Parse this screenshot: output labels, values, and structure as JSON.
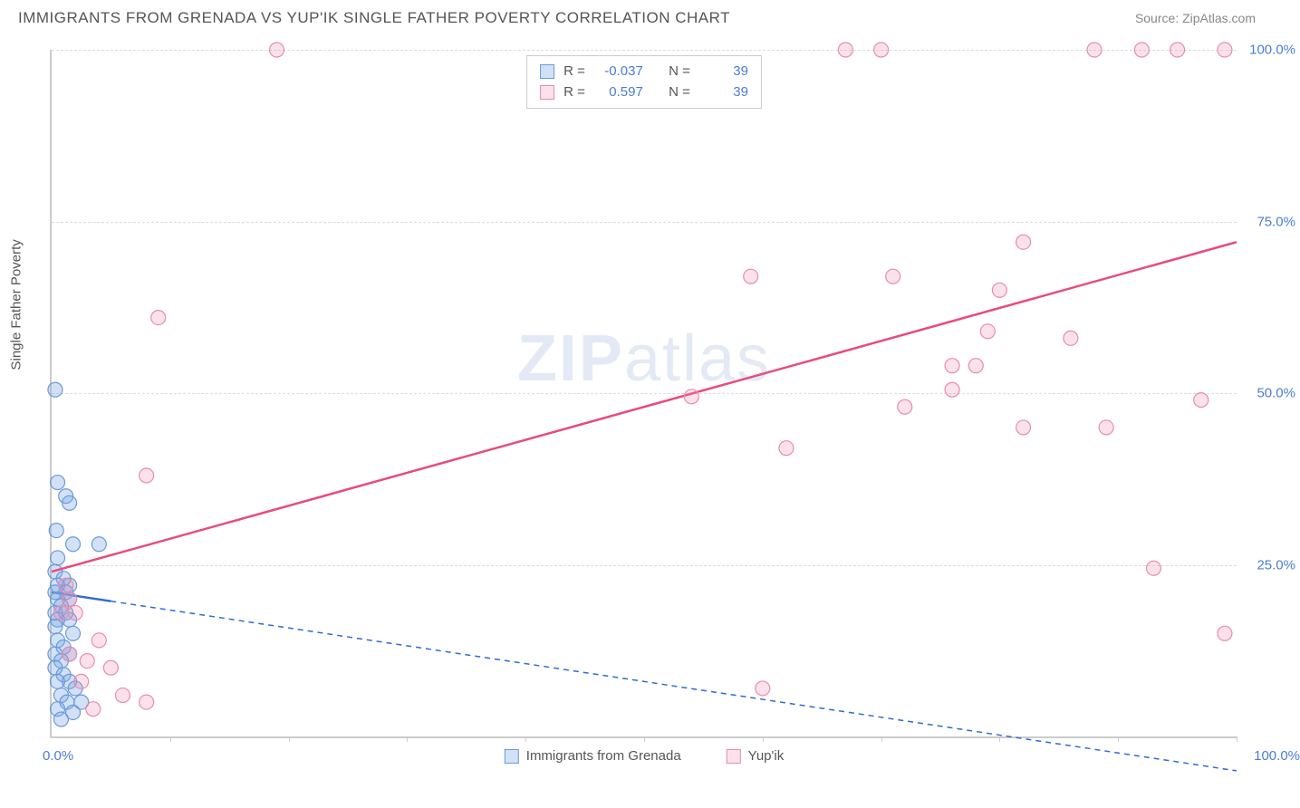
{
  "header": {
    "title": "IMMIGRANTS FROM GRENADA VS YUP'IK SINGLE FATHER POVERTY CORRELATION CHART",
    "source": "Source: ZipAtlas.com"
  },
  "chart": {
    "type": "scatter",
    "ylabel": "Single Father Poverty",
    "xlim": [
      0,
      100
    ],
    "ylim": [
      0,
      100
    ],
    "grid_color": "#dddddd",
    "axis_color": "#cccccc",
    "background_color": "#ffffff",
    "ytick_labels": [
      "25.0%",
      "50.0%",
      "75.0%",
      "100.0%"
    ],
    "ytick_values": [
      25,
      50,
      75,
      100
    ],
    "xtick_labels_shown": [
      "0.0%",
      "100.0%"
    ],
    "xtick_positions": [
      0,
      10,
      20,
      30,
      40,
      50,
      60,
      70,
      80,
      90,
      100
    ],
    "watermark": "ZIPatlas"
  },
  "series": [
    {
      "name": "Immigrants from Grenada",
      "fill_color": "rgba(126,170,230,0.35)",
      "stroke_color": "#6a9ad8",
      "marker_radius": 8,
      "trend": {
        "x1": 0,
        "y1": 21,
        "x2": 100,
        "y2": -5,
        "color": "#2f6bd0",
        "dash": "6,5",
        "width": 1.5,
        "solid_until_x": 5
      },
      "stats": {
        "r_label": "R =",
        "r": "-0.037",
        "n_label": "N =",
        "n": "39"
      },
      "points": [
        {
          "x": 0.3,
          "y": 50.5
        },
        {
          "x": 0.5,
          "y": 37
        },
        {
          "x": 1.2,
          "y": 35
        },
        {
          "x": 1.5,
          "y": 34
        },
        {
          "x": 0.4,
          "y": 30
        },
        {
          "x": 1.8,
          "y": 28
        },
        {
          "x": 4,
          "y": 28
        },
        {
          "x": 0.5,
          "y": 26
        },
        {
          "x": 0.3,
          "y": 24
        },
        {
          "x": 1,
          "y": 23
        },
        {
          "x": 0.5,
          "y": 22
        },
        {
          "x": 1.5,
          "y": 22
        },
        {
          "x": 0.3,
          "y": 21
        },
        {
          "x": 1.2,
          "y": 21
        },
        {
          "x": 0.5,
          "y": 20
        },
        {
          "x": 1.5,
          "y": 20
        },
        {
          "x": 0.8,
          "y": 19
        },
        {
          "x": 0.3,
          "y": 18
        },
        {
          "x": 1.2,
          "y": 18
        },
        {
          "x": 0.5,
          "y": 17
        },
        {
          "x": 1.5,
          "y": 17
        },
        {
          "x": 0.3,
          "y": 16
        },
        {
          "x": 1.8,
          "y": 15
        },
        {
          "x": 0.5,
          "y": 14
        },
        {
          "x": 1,
          "y": 13
        },
        {
          "x": 0.3,
          "y": 12
        },
        {
          "x": 1.5,
          "y": 12
        },
        {
          "x": 0.8,
          "y": 11
        },
        {
          "x": 0.3,
          "y": 10
        },
        {
          "x": 1,
          "y": 9
        },
        {
          "x": 0.5,
          "y": 8
        },
        {
          "x": 1.5,
          "y": 8
        },
        {
          "x": 2,
          "y": 7
        },
        {
          "x": 0.8,
          "y": 6
        },
        {
          "x": 1.3,
          "y": 5
        },
        {
          "x": 2.5,
          "y": 5
        },
        {
          "x": 0.5,
          "y": 4
        },
        {
          "x": 1.8,
          "y": 3.5
        },
        {
          "x": 0.8,
          "y": 2.5
        }
      ]
    },
    {
      "name": "Yup'ik",
      "fill_color": "rgba(240,140,170,0.25)",
      "stroke_color": "#e98bb0",
      "marker_radius": 8,
      "trend": {
        "x1": 0,
        "y1": 24,
        "x2": 100,
        "y2": 72,
        "color": "#e94b7a",
        "dash": "",
        "width": 2.5
      },
      "stats": {
        "r_label": "R =",
        "r": "0.597",
        "n_label": "N =",
        "n": "39"
      },
      "points": [
        {
          "x": 19,
          "y": 100
        },
        {
          "x": 67,
          "y": 100
        },
        {
          "x": 70,
          "y": 100
        },
        {
          "x": 88,
          "y": 100
        },
        {
          "x": 92,
          "y": 100
        },
        {
          "x": 95,
          "y": 100
        },
        {
          "x": 99,
          "y": 100
        },
        {
          "x": 82,
          "y": 72
        },
        {
          "x": 59,
          "y": 67
        },
        {
          "x": 71,
          "y": 67
        },
        {
          "x": 80,
          "y": 65
        },
        {
          "x": 9,
          "y": 61
        },
        {
          "x": 79,
          "y": 59
        },
        {
          "x": 86,
          "y": 58
        },
        {
          "x": 76,
          "y": 54
        },
        {
          "x": 78,
          "y": 54
        },
        {
          "x": 76,
          "y": 50.5
        },
        {
          "x": 54,
          "y": 49.5
        },
        {
          "x": 97,
          "y": 49
        },
        {
          "x": 72,
          "y": 48
        },
        {
          "x": 82,
          "y": 45
        },
        {
          "x": 89,
          "y": 45
        },
        {
          "x": 62,
          "y": 42
        },
        {
          "x": 8,
          "y": 38
        },
        {
          "x": 93,
          "y": 24.5
        },
        {
          "x": 1.2,
          "y": 22
        },
        {
          "x": 1.5,
          "y": 20
        },
        {
          "x": 0.8,
          "y": 18
        },
        {
          "x": 2,
          "y": 18
        },
        {
          "x": 99,
          "y": 15
        },
        {
          "x": 4,
          "y": 14
        },
        {
          "x": 1.5,
          "y": 12
        },
        {
          "x": 3,
          "y": 11
        },
        {
          "x": 5,
          "y": 10
        },
        {
          "x": 2.5,
          "y": 8
        },
        {
          "x": 60,
          "y": 7
        },
        {
          "x": 6,
          "y": 6
        },
        {
          "x": 8,
          "y": 5
        },
        {
          "x": 3.5,
          "y": 4
        }
      ]
    }
  ],
  "legend_bottom": [
    {
      "swatch_fill": "rgba(126,170,230,0.35)",
      "swatch_stroke": "#6a9ad8",
      "label": "Immigrants from Grenada"
    },
    {
      "swatch_fill": "rgba(240,140,170,0.25)",
      "swatch_stroke": "#e98bb0",
      "label": "Yup'ik"
    }
  ]
}
